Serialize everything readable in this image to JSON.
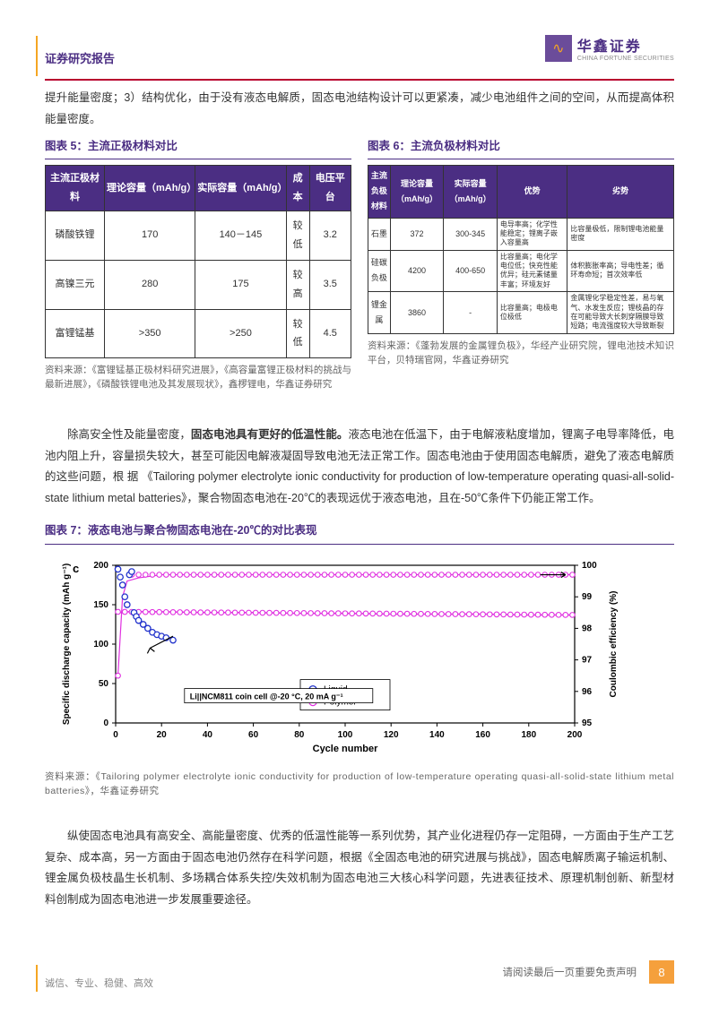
{
  "header": {
    "title": "证券研究报告"
  },
  "logo": {
    "glyph": "∿",
    "cn": "华鑫证券",
    "en": "CHINA FORTUNE SECURITIES"
  },
  "intro_para": "提升能量密度；3）结构优化，由于没有液态电解质，固态电池结构设计可以更紧凑，减少电池组件之间的空间，从而提高体积能量密度。",
  "fig5": {
    "title": "图表 5：主流正极材料对比",
    "headers": [
      "主流正极材料",
      "理论容量（mAh/g）",
      "实际容量（mAh/g）",
      "成本",
      "电压平台"
    ],
    "rows": [
      [
        "磷酸铁锂",
        "170",
        "140－145",
        "较低",
        "3.2"
      ],
      [
        "高镍三元",
        "280",
        "175",
        "较高",
        "3.5"
      ],
      [
        "富锂锰基",
        ">350",
        ">250",
        "较低",
        "4.5"
      ]
    ],
    "source": "资料来源：《富锂锰基正极材料研究进展》，《高容量富锂正极材料的挑战与最新进展》，《磷酸铁锂电池及其发展现状》，鑫椤锂电，华鑫证券研究"
  },
  "fig6": {
    "title": "图表 6：主流负极材料对比",
    "headers": [
      "主流负极材料",
      "理论容量（mAh/g）",
      "实际容量（mAh/g）",
      "优势",
      "劣势"
    ],
    "rows": [
      [
        "石墨",
        "372",
        "300-345",
        "电导率高；化学性能稳定；锂离子嵌入容量高",
        "比容量极低，限制锂电池能量密度"
      ],
      [
        "硅碳负极",
        "4200",
        "400-650",
        "比容量高；电化学电位低；快充性能优异；硅元素储量丰富；环境友好",
        "体积膨胀率高；导电性差；循环寿命短；首次效率低"
      ],
      [
        "锂金属",
        "3860",
        "-",
        "比容量高；电极电位极低",
        "金属锂化学稳定性差，易与氧气、水发生反应；锂枝晶的存在可能导致大长刺穿隔膜导致短路；电流强度较大导致断裂"
      ]
    ],
    "source": "资料来源：《蓬勃发展的金属锂负极》，华经产业研究院，锂电池技术知识平台，贝特瑞官网，华鑫证券研究"
  },
  "para2_a": "除高安全性及能量密度，",
  "para2_bold": "固态电池具有更好的低温性能。",
  "para2_b": "液态电池在低温下，由于电解液粘度增加，锂离子电导率降低，电池内阻上升，容量损失较大，甚至可能因电解液凝固导致电池无法正常工作。固态电池由于使用固态电解质，避免了液态电解质的这些问题，根 据 《Tailoring polymer electrolyte ionic conductivity for production of low-temperature operating quasi-all-solid-state lithium metal batteries》，聚合物固态电池在-20℃的表现远优于液态电池，且在-50℃条件下仍能正常工作。",
  "fig7": {
    "title": "图表 7：液态电池与聚合物固态电池在-20℃的对比表现",
    "source": "资料来源：《Tailoring polymer electrolyte ionic conductivity for production of low-temperature operating quasi-all-solid-state lithium metal batteries》，华鑫证券研究",
    "chart": {
      "panel_label": "c",
      "x_label": "Cycle number",
      "y_left_label": "Specific discharge capacity (mAh g⁻¹)",
      "y_right_label": "Coulombic efficiency (%)",
      "x_range": [
        0,
        200
      ],
      "x_ticks": [
        0,
        20,
        40,
        60,
        80,
        100,
        120,
        140,
        160,
        180,
        200
      ],
      "y_left_range": [
        0,
        200
      ],
      "y_left_ticks": [
        0,
        50,
        100,
        150,
        200
      ],
      "y_right_range": [
        95,
        100
      ],
      "y_right_ticks": [
        95,
        96,
        97,
        98,
        99,
        100
      ],
      "legend": [
        {
          "label": "Liquid",
          "marker": "circle-open",
          "color": "#2233cc"
        },
        {
          "label": "Polymer",
          "marker": "circle-open",
          "color": "#e030e0"
        }
      ],
      "note": "Li||NCM811 coin cell @-20 °C, 20 mA g⁻¹",
      "liquid_cap": {
        "color": "#2233cc",
        "points": [
          [
            1,
            195
          ],
          [
            2,
            185
          ],
          [
            3,
            175
          ],
          [
            4,
            160
          ],
          [
            5,
            150
          ],
          [
            6,
            188
          ],
          [
            7,
            192
          ],
          [
            8,
            140
          ],
          [
            9,
            135
          ],
          [
            10,
            130
          ],
          [
            12,
            125
          ],
          [
            14,
            120
          ],
          [
            16,
            115
          ],
          [
            18,
            112
          ],
          [
            20,
            110
          ],
          [
            22,
            108
          ],
          [
            25,
            105
          ]
        ]
      },
      "polymer_cap": {
        "color": "#e030e0",
        "points": [
          [
            1,
            140
          ],
          [
            5,
            141
          ],
          [
            10,
            141
          ],
          [
            20,
            141
          ],
          [
            40,
            140
          ],
          [
            60,
            140
          ],
          [
            80,
            139
          ],
          [
            100,
            139
          ],
          [
            120,
            138
          ],
          [
            140,
            138
          ],
          [
            160,
            138
          ],
          [
            180,
            137
          ],
          [
            200,
            137
          ]
        ]
      },
      "polymer_ce": {
        "color": "#e030e0",
        "points": [
          [
            1,
            96.5
          ],
          [
            3,
            99.0
          ],
          [
            5,
            99.5
          ],
          [
            10,
            99.6
          ],
          [
            20,
            99.7
          ],
          [
            40,
            99.7
          ],
          [
            60,
            99.7
          ],
          [
            80,
            99.7
          ],
          [
            100,
            99.7
          ],
          [
            120,
            99.7
          ],
          [
            140,
            99.7
          ],
          [
            160,
            99.7
          ],
          [
            180,
            99.7
          ],
          [
            200,
            99.7
          ]
        ]
      },
      "bg": "#ffffff",
      "axis_color": "#000000",
      "font_size": 10
    }
  },
  "para3": "纵使固态电池具有高安全、高能量密度、优秀的低温性能等一系列优势，其产业化进程仍存一定阻碍，一方面由于生产工艺复杂、成本高，另一方面由于固态电池仍然存在科学问题，根据《全固态电池的研究进展与挑战》，固态电解质离子输运机制、锂金属负极枝晶生长机制、多场耦合体系失控/失效机制为固态电池三大核心科学问题，先进表征技术、原理机制创新、新型材料创制成为固态电池进一步发展重要途径。",
  "footer": {
    "motto": "诚信、专业、稳健、高效",
    "disclaimer": "请阅读最后一页重要免责声明",
    "page": "8"
  }
}
